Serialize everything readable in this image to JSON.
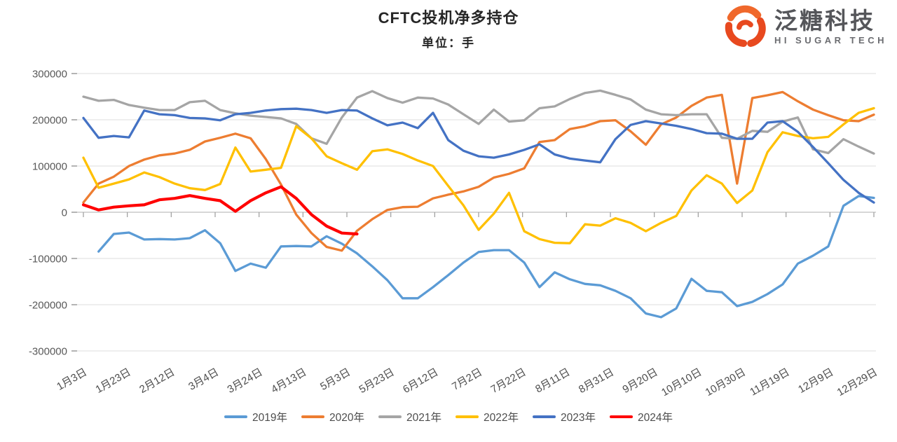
{
  "page": {
    "background": "#ffffff"
  },
  "header": {
    "title": "CFTC投机净多持仓",
    "subtitle": "单位：手"
  },
  "logo": {
    "brand": "泛糖科技",
    "tagline": "HI SUGAR TECH",
    "icon": "swirl-s-icon",
    "icon_color": "#E8491F",
    "text_color": "#55565A"
  },
  "chart_data": {
    "type": "line",
    "title": "CFTC投机净多持仓",
    "unit_label": "单位：手",
    "grid": "horizontal",
    "legend_position": "bottom",
    "ylim": [
      -300000,
      300000
    ],
    "y_ticks": [
      {
        "label": "300000",
        "value": 300000
      },
      {
        "label": "200000",
        "value": 200000
      },
      {
        "label": "100000",
        "value": 100000
      },
      {
        "label": "0",
        "value": 0
      },
      {
        "label": "-100000",
        "value": -100000
      },
      {
        "label": "-200000",
        "value": -200000
      },
      {
        "label": "-300000",
        "value": -300000
      }
    ],
    "x_tick_labels": [
      "1月3日",
      "1月23日",
      "2月12日",
      "3月4日",
      "3月24日",
      "4月13日",
      "5月3日",
      "5月23日",
      "6月12日",
      "7月2日",
      "7月22日",
      "8月11日",
      "8月31日",
      "9月20日",
      "10月10日",
      "10月30日",
      "11月19日",
      "12月9日",
      "12月29日"
    ],
    "points_per_year": 53,
    "series": [
      {
        "name": "2019年",
        "color": "#5B9BD5",
        "values": [
          null,
          -85000,
          -47000,
          -44000,
          -59000,
          -58000,
          -59000,
          -56000,
          -39000,
          -67000,
          -127000,
          -111000,
          -120000,
          -74000,
          -73000,
          -74000,
          -52000,
          -68000,
          -89000,
          -117000,
          -147000,
          -186000,
          -186000,
          -162000,
          -136000,
          -109000,
          -86000,
          -82000,
          -82000,
          -109000,
          -162000,
          -130000,
          -145000,
          -155000,
          -158000,
          -170000,
          -186000,
          -219000,
          -227000,
          -208000,
          -144000,
          -170000,
          -173000,
          -203000,
          -194000,
          -177000,
          -156000,
          -111000,
          -94000,
          -74000,
          14000,
          35000,
          31000
        ]
      },
      {
        "name": "2020年",
        "color": "#ED7D31",
        "values": [
          21000,
          62000,
          77000,
          100000,
          114000,
          123000,
          127000,
          135000,
          153000,
          161000,
          170000,
          160000,
          115000,
          60000,
          -5000,
          -45000,
          -75000,
          -83000,
          -40000,
          -15000,
          5000,
          11000,
          12000,
          30000,
          38000,
          45000,
          55000,
          75000,
          83000,
          95000,
          152000,
          156000,
          180000,
          186000,
          197000,
          199000,
          175000,
          146000,
          190000,
          205000,
          230000,
          248000,
          254000,
          62000,
          247000,
          253000,
          260000,
          240000,
          222000,
          210000,
          199000,
          197000,
          211000
        ]
      },
      {
        "name": "2021年",
        "color": "#A5A5A5",
        "values": [
          250000,
          241000,
          243000,
          232000,
          226000,
          221000,
          221000,
          238000,
          241000,
          221000,
          214000,
          209000,
          206000,
          203000,
          191000,
          160000,
          148000,
          205000,
          248000,
          262000,
          247000,
          237000,
          248000,
          246000,
          233000,
          212000,
          191000,
          222000,
          196000,
          199000,
          225000,
          229000,
          245000,
          258000,
          263000,
          254000,
          244000,
          222000,
          212000,
          210000,
          212000,
          212000,
          161000,
          159000,
          176000,
          174000,
          196000,
          205000,
          136000,
          128000,
          158000,
          142000,
          127000
        ]
      },
      {
        "name": "2022年",
        "color": "#FFC000",
        "values": [
          118000,
          53000,
          62000,
          71000,
          86000,
          76000,
          62000,
          52000,
          48000,
          61000,
          140000,
          88000,
          92000,
          96000,
          186000,
          160000,
          121000,
          106000,
          92000,
          132000,
          136000,
          126000,
          112000,
          100000,
          57000,
          15000,
          -38000,
          -3000,
          42000,
          -41000,
          -58000,
          -66000,
          -67000,
          -26000,
          -29000,
          -13000,
          -23000,
          -41000,
          -23000,
          -8000,
          47000,
          80000,
          62000,
          20000,
          47000,
          130000,
          173000,
          165000,
          160000,
          163000,
          190000,
          215000,
          225000
        ]
      },
      {
        "name": "2023年",
        "color": "#4472C4",
        "values": [
          204000,
          161000,
          165000,
          162000,
          220000,
          212000,
          210000,
          204000,
          203000,
          199000,
          212000,
          215000,
          220000,
          223000,
          224000,
          221000,
          215000,
          221000,
          220000,
          203000,
          188000,
          194000,
          182000,
          215000,
          156000,
          133000,
          121000,
          118000,
          125000,
          135000,
          147000,
          125000,
          116000,
          112000,
          108000,
          158000,
          189000,
          197000,
          192000,
          187000,
          180000,
          171000,
          170000,
          159000,
          159000,
          194000,
          197000,
          174000,
          141000,
          106000,
          70000,
          42000,
          21000
        ]
      },
      {
        "name": "2024年",
        "color": "#FF0000",
        "values": [
          16000,
          5000,
          11000,
          14000,
          16000,
          27000,
          30000,
          36000,
          30000,
          25000,
          2000,
          25000,
          42000,
          55000,
          30000,
          -5000,
          -30000,
          -45000,
          -47000
        ]
      }
    ]
  }
}
